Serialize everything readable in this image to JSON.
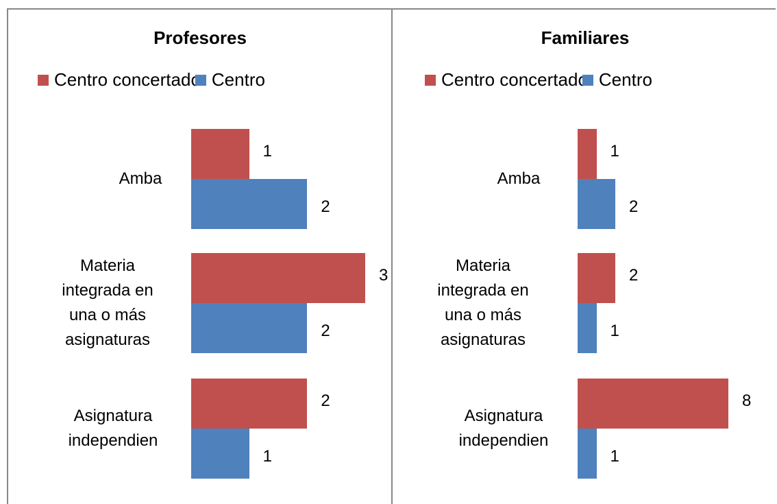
{
  "chart_data": [
    {
      "type": "bar",
      "orientation": "horizontal",
      "title": "Profesores",
      "categories": [
        "Amba",
        "Materia integrada en una o más asignaturas",
        "Asignatura independien"
      ],
      "series": [
        {
          "name": "Centro concertado",
          "color": "#c0504d",
          "values": [
            1,
            3,
            2
          ]
        },
        {
          "name": "Centro",
          "color": "#4f81bd",
          "values": [
            2,
            2,
            1
          ]
        }
      ]
    },
    {
      "type": "bar",
      "orientation": "horizontal",
      "title": "Familiares",
      "categories": [
        "Amba",
        "Materia integrada en una o más asignaturas",
        "Asignatura independien"
      ],
      "series": [
        {
          "name": "Centro concertado",
          "color": "#c0504d",
          "values": [
            1,
            2,
            8
          ]
        },
        {
          "name": "Centro",
          "color": "#4f81bd",
          "values": [
            2,
            1,
            1
          ]
        }
      ]
    }
  ]
}
